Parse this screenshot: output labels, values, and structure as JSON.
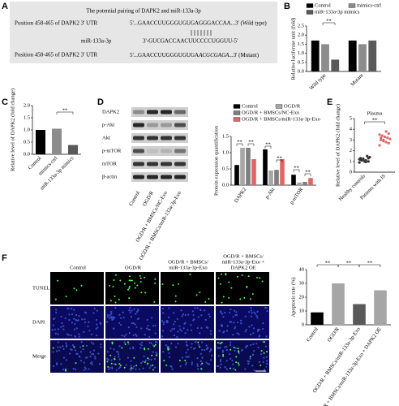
{
  "panel_labels": [
    "A",
    "B",
    "C",
    "D",
    "E",
    "F"
  ],
  "panel_a": {
    "title": "The potential pairing of DAPK2 and miR-133a-3p",
    "wild_label": "Position 458-465 of DAPK2 3' UTR",
    "wild_seq": "5'...GAACCUUGGGUGUGAGGGACCAA...3' (Wild type)",
    "mir_label": "miR-133a-3p",
    "mir_seq": "3'-GUCGACCAACUUCCCCUGGUU-5'",
    "mut_label": "Position 458-465 of DAPK2 3' UTR",
    "mut_seq": [
      "5'...GAACCUUGGGUGUGA",
      "ACGCGAGA",
      "...3' (Mutant)"
    ]
  },
  "blot": {
    "rows": [
      "DAPK2",
      "p-Akt",
      "Akt",
      "p-mTOR",
      "mTOR",
      "β-actin"
    ],
    "columns": [
      "Control",
      "OGD/R",
      "OGD/R + BMSCs/NC-Exo",
      "OGD/R + BMSCs/miR-133a-3p-Exo"
    ]
  },
  "tunel": {
    "columns": [
      [
        "Control"
      ],
      [
        "OGD/R"
      ],
      [
        "OGD/R + BMSCs/",
        "miR-133a-3p-Exo"
      ],
      [
        "OGD/R + BMSCs/",
        "miR-133a-3p-Exo +",
        "DAPK2 OE"
      ]
    ],
    "rows": [
      "TUNEL",
      "DAPI",
      "Merge"
    ],
    "scale_bar": "50 μm"
  },
  "chart_data": [
    {
      "type": "bar",
      "ylabel": "Relative luciferase unit (fold)",
      "categories": [
        "Wild type",
        "Mutant"
      ],
      "series": [
        {
          "name": "Control",
          "color": "#000000",
          "values": [
            1.7,
            1.7
          ]
        },
        {
          "name": "mimics-ctrl",
          "color": "#8c8c8c",
          "values": [
            1.5,
            1.5
          ]
        },
        {
          "name": "miR-133a-3p mimics",
          "color": "#595959",
          "values": [
            0.65,
            1.7
          ]
        }
      ],
      "ylim": [
        0,
        2.5
      ],
      "yticks": [
        {
          "value": 0,
          "label": "0.0"
        },
        0.5,
        {
          "value": 1,
          "label": "1.0"
        },
        1.5,
        {
          "value": 2,
          "label": "2.0"
        },
        2.5
      ],
      "legend": "top",
      "annotations": [
        "**"
      ]
    },
    {
      "type": "bar",
      "ylabel": "Relative level of DAPK2 (fold change)",
      "categories": [
        "Control",
        "mimics-ctrl",
        "miR-133a-3p mimics"
      ],
      "values": [
        1.0,
        1.05,
        0.38
      ],
      "colors": [
        "#000000",
        "#8c8c8c",
        "#595959"
      ],
      "ylim": [
        0,
        2.0
      ],
      "yticks": [
        {
          "value": 0,
          "label": "0.0"
        },
        0.5,
        {
          "value": 1,
          "label": "1.0"
        },
        1.5,
        {
          "value": 2,
          "label": "2.0"
        }
      ],
      "annotations": [
        "**"
      ]
    },
    {
      "type": "bar",
      "ylabel": "Protein expression quantification",
      "categories": [
        "DAPK2",
        "p-Akt",
        "p-mTOR"
      ],
      "series": [
        {
          "name": "Control",
          "color": "#000000",
          "values": [
            0.62,
            1.1,
            0.32
          ]
        },
        {
          "name": "OGD/R",
          "color": "#a6a6a6",
          "values": [
            1.15,
            0.45,
            0.08
          ]
        },
        {
          "name": "OGD/R + BMSCs/NC-Exo",
          "color": "#7f7f7f",
          "values": [
            1.15,
            0.47,
            0.1
          ]
        },
        {
          "name": "OGD/R + BMSCs/miR-133a-3p-Exo",
          "color": "#e06666",
          "values": [
            0.8,
            0.8,
            0.22
          ]
        }
      ],
      "ylim": [
        0,
        1.5
      ],
      "yticks": [
        {
          "value": 0,
          "label": "0.0"
        },
        0.5,
        {
          "value": 1,
          "label": "1.0"
        },
        1.5
      ],
      "legend": "top",
      "annotations": [
        "**",
        "**",
        "**",
        "**",
        "**",
        "**"
      ]
    },
    {
      "type": "strip",
      "title": "Plasma",
      "ylabel": "Relative level of DAPK2 (fold change)",
      "categories": [
        "Healthy controls",
        "Patients with IS"
      ],
      "groups": [
        [
          0.9,
          1.0,
          1.1,
          1.2,
          1.3,
          1.4,
          1.5,
          1.0,
          1.1,
          1.2,
          1.3,
          0.95,
          1.25,
          1.15
        ],
        [
          2.5,
          2.7,
          2.8,
          2.9,
          3.0,
          3.1,
          3.2,
          3.3,
          3.4,
          3.5,
          3.6,
          3.8,
          3.0,
          3.2
        ]
      ],
      "color": "#e06666",
      "ylim": [
        0,
        5
      ],
      "yticks": [
        0,
        1,
        2,
        3,
        4,
        5
      ],
      "annotations": [
        "**"
      ]
    },
    {
      "type": "bar",
      "ylabel": "Apoptosis rate (%)",
      "categories": [
        "Control",
        "OGD/R",
        "OGD/R + BMSCs/miR-133a-3p-Exo",
        "OGD/R + BMSCs/miR-133a-3p-Exo + DAPK2 OE"
      ],
      "values": [
        9,
        30,
        15,
        25
      ],
      "colors": [
        "#000000",
        "#a6a6a6",
        "#595959",
        "#a6a6a6"
      ],
      "ylim": [
        0,
        40
      ],
      "yticks": [
        0,
        10,
        20,
        30,
        40
      ],
      "annotations": [
        "**",
        "**",
        "**"
      ]
    }
  ]
}
